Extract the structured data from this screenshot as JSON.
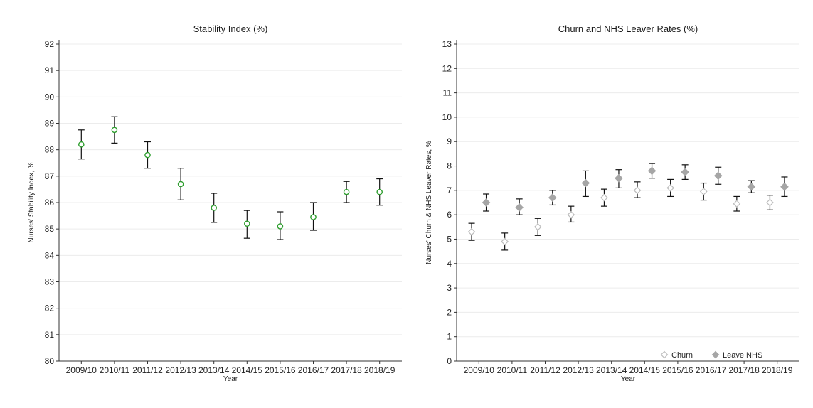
{
  "chart_data": [
    {
      "type": "scatter",
      "title": "Stability Index (%)",
      "xlabel": "Year",
      "ylabel": "Nurses' Stability Index, %",
      "categories": [
        "2009/10",
        "2010/11",
        "2011/12",
        "2012/13",
        "2013/14",
        "2014/15",
        "2015/16",
        "2016/17",
        "2017/18",
        "2018/19"
      ],
      "ylim": [
        80,
        92
      ],
      "yticks": [
        80,
        81,
        82,
        83,
        84,
        85,
        86,
        87,
        88,
        89,
        90,
        91,
        92
      ],
      "grid": true,
      "series": [
        {
          "values": [
            88.2,
            88.75,
            87.8,
            86.7,
            85.8,
            85.2,
            85.1,
            85.45,
            86.4,
            86.4
          ],
          "lower": [
            87.65,
            88.25,
            87.3,
            86.1,
            85.25,
            84.65,
            84.6,
            84.95,
            86.0,
            85.9
          ],
          "upper": [
            88.75,
            89.25,
            88.3,
            87.3,
            86.35,
            85.7,
            85.65,
            86.0,
            86.8,
            86.9
          ],
          "marker": "circle",
          "color": "#2e9e2e"
        }
      ]
    },
    {
      "type": "scatter",
      "title": "Churn and NHS Leaver Rates (%)",
      "xlabel": "Year",
      "ylabel": "Nurses' Churn & NHS Leaver Rates, %",
      "categories": [
        "2009/10",
        "2010/11",
        "2011/12",
        "2012/13",
        "2013/14",
        "2014/15",
        "2015/16",
        "2016/17",
        "2017/18",
        "2018/19"
      ],
      "ylim": [
        0,
        13
      ],
      "yticks": [
        0,
        1,
        2,
        3,
        4,
        5,
        6,
        7,
        8,
        9,
        10,
        11,
        12,
        13
      ],
      "grid": true,
      "legend_position": "bottom-right",
      "series": [
        {
          "name": "Churn",
          "values": [
            5.3,
            4.9,
            5.5,
            6.0,
            6.7,
            7.0,
            7.1,
            6.95,
            6.45,
            6.5
          ],
          "lower": [
            4.95,
            4.55,
            5.15,
            5.7,
            6.35,
            6.7,
            6.75,
            6.6,
            6.15,
            6.2
          ],
          "upper": [
            5.65,
            5.25,
            5.85,
            6.35,
            7.05,
            7.35,
            7.45,
            7.3,
            6.75,
            6.8
          ],
          "marker": "hollow-diamond",
          "color": "#bdbdbd"
        },
        {
          "name": "Leave NHS",
          "values": [
            6.5,
            6.3,
            6.7,
            7.3,
            7.5,
            7.8,
            7.75,
            7.6,
            7.15,
            7.15
          ],
          "lower": [
            6.15,
            6.0,
            6.4,
            6.75,
            7.1,
            7.5,
            7.45,
            7.25,
            6.9,
            6.75
          ],
          "upper": [
            6.85,
            6.65,
            7.0,
            7.8,
            7.85,
            8.1,
            8.05,
            7.95,
            7.4,
            7.55
          ],
          "marker": "filled-diamond",
          "color": "#a6a6a6"
        }
      ]
    }
  ]
}
